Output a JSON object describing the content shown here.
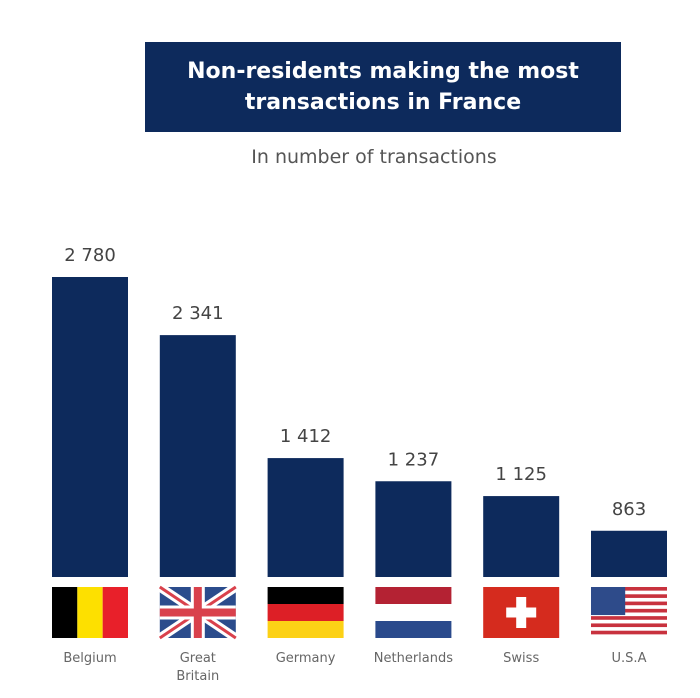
{
  "chart_data": {
    "type": "bar",
    "title": "Non-residents making the most transactions in France",
    "subtitle": "In number of transactions",
    "categories": [
      "Belgium",
      "Great Britain",
      "Germany",
      "Netherlands",
      "Swiss",
      "U.S.A"
    ],
    "category_lines": [
      [
        "Belgium"
      ],
      [
        "Great",
        "Britain"
      ],
      [
        "Germany"
      ],
      [
        "Netherlands"
      ],
      [
        "Swiss"
      ],
      [
        "U.S.A"
      ]
    ],
    "values": [
      2780,
      2341,
      1412,
      1237,
      1125,
      863
    ],
    "value_labels": [
      "2 780",
      "2 341",
      "1 412",
      "1 237",
      "1 125",
      "863"
    ],
    "flags": [
      "belgium-flag",
      "uk-flag",
      "germany-flag",
      "netherlands-flag",
      "switzerland-flag",
      "usa-flag"
    ],
    "bar_color": "#0d2a5c",
    "grid": false,
    "legend": "none"
  }
}
